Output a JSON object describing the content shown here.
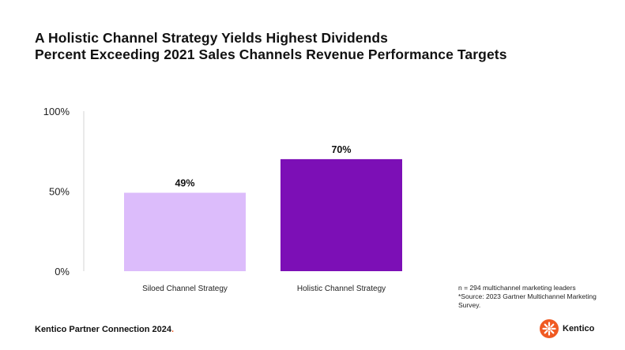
{
  "title_line1": "A Holistic Channel Strategy Yields Highest Dividends",
  "title_line2": "Percent Exceeding 2021 Sales Channels Revenue Performance Targets",
  "chart_data": {
    "type": "bar",
    "categories": [
      "Siloed Channel Strategy",
      "Holistic Channel Strategy"
    ],
    "values": [
      49,
      70
    ],
    "data_labels": [
      "49%",
      "70%"
    ],
    "ylim": [
      0,
      100
    ],
    "yticks": [
      0,
      50,
      100
    ],
    "ytick_labels": [
      "0%",
      "50%",
      "100%"
    ],
    "colors": [
      "#dcbcfb",
      "#7c0fb6"
    ],
    "grid": false,
    "legend": "none"
  },
  "notes": [
    "n = 294 multichannel marketing leaders",
    "*Source: 2023 Gartner Multichannel Marketing Survey."
  ],
  "footer": {
    "text": "Kentico Partner Connection 2024",
    "accent_dot": "."
  },
  "brand": {
    "name": "Kentico",
    "icon": "kentico-logo-icon",
    "color": "#f05a22"
  }
}
